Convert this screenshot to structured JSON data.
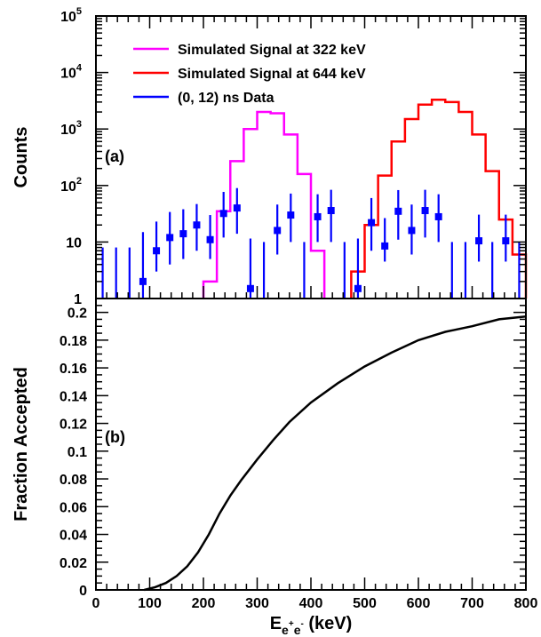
{
  "chart_data": [
    {
      "type": "line",
      "panel_label": "(a)",
      "ylabel": "Counts",
      "yscale": "log",
      "xlim": [
        0,
        800
      ],
      "ylim": [
        1,
        100000
      ],
      "y_tick_labels": [
        "1",
        "10",
        "10",
        "10",
        "10",
        "10"
      ],
      "y_tick_exponents": [
        "",
        "",
        "2",
        "3",
        "4",
        "5"
      ],
      "legend_position": "top-left",
      "series": [
        {
          "name": "Simulated Signal at 322 keV",
          "style": "histogram",
          "color": "#ff00ff",
          "bin_edges": [
            200,
            225,
            250,
            275,
            300,
            325,
            350,
            375,
            400,
            425
          ],
          "values": [
            2,
            35,
            270,
            1000,
            2000,
            1900,
            800,
            160,
            7
          ]
        },
        {
          "name": "Simulated Signal at 644 keV",
          "style": "histogram",
          "color": "#ff0000",
          "bin_edges": [
            475,
            500,
            525,
            550,
            575,
            600,
            625,
            650,
            675,
            700,
            725,
            750,
            775,
            800
          ],
          "values": [
            3,
            20,
            150,
            600,
            1500,
            2700,
            3300,
            3000,
            2000,
            800,
            180,
            25,
            6
          ]
        },
        {
          "name": "(0, 12) ns Data",
          "style": "points",
          "color": "#0000ff",
          "x": [
            12.5,
            37.5,
            62.5,
            87.5,
            112.5,
            137.5,
            162.5,
            187.5,
            212.5,
            237.5,
            262.5,
            287.5,
            312.5,
            337.5,
            362.5,
            387.5,
            412.5,
            437.5,
            462.5,
            487.5,
            512.5,
            537.5,
            562.5,
            587.5,
            612.5,
            637.5,
            662.5,
            687.5,
            712.5,
            737.5,
            762.5,
            787.5
          ],
          "y": [
            0,
            0,
            0,
            2,
            7,
            12,
            14,
            20,
            11,
            32,
            40,
            1.5,
            0,
            16,
            30,
            0,
            28,
            36,
            0,
            1.5,
            22,
            8.5,
            35,
            16,
            36,
            28,
            0,
            0,
            10.5,
            0,
            10.5,
            0
          ],
          "err_low": [
            0,
            0,
            0,
            1,
            4,
            8,
            9,
            13,
            6,
            20,
            26,
            0.5,
            0,
            10,
            20,
            0,
            18,
            26,
            0,
            0.5,
            15,
            4,
            24,
            10,
            24,
            18,
            0,
            0,
            6,
            0,
            6,
            0
          ],
          "err_high": [
            8,
            8,
            8,
            13,
            16,
            22,
            24,
            27,
            19,
            45,
            50,
            10,
            10,
            30,
            42,
            10,
            42,
            48,
            10,
            10,
            38,
            18,
            48,
            30,
            48,
            42,
            10,
            10,
            20,
            10,
            20,
            10
          ]
        }
      ]
    },
    {
      "type": "line",
      "panel_label": "(b)",
      "xlabel": "E",
      "xlabel_sub": "e",
      "xlabel_sup1": "+",
      "xlabel_sub2": "e",
      "xlabel_sup2": "-",
      "xlabel_unit": " (keV)",
      "ylabel": "Fraction Accepted",
      "xlim": [
        0,
        800
      ],
      "ylim": [
        0,
        0.21
      ],
      "x_ticks": [
        0,
        100,
        200,
        300,
        400,
        500,
        600,
        700,
        800
      ],
      "x_tick_labels": [
        "0",
        "100",
        "200",
        "300",
        "400",
        "500",
        "600",
        "700",
        "800"
      ],
      "y_ticks": [
        0,
        0.02,
        0.04,
        0.06,
        0.08,
        0.1,
        0.12,
        0.14,
        0.16,
        0.18,
        0.2
      ],
      "y_tick_labels": [
        "0",
        "0.02",
        "0.04",
        "0.06",
        "0.08",
        "0.1",
        "0.12",
        "0.14",
        "0.16",
        "0.18",
        "0.2"
      ],
      "series": [
        {
          "color": "#000000",
          "x": [
            90,
            110,
            130,
            150,
            170,
            190,
            210,
            230,
            250,
            270,
            300,
            330,
            360,
            400,
            450,
            500,
            550,
            600,
            650,
            700,
            750,
            800
          ],
          "y": [
            0,
            0.002,
            0.005,
            0.01,
            0.017,
            0.027,
            0.04,
            0.055,
            0.068,
            0.079,
            0.094,
            0.108,
            0.121,
            0.135,
            0.149,
            0.161,
            0.171,
            0.18,
            0.186,
            0.19,
            0.195,
            0.197
          ]
        }
      ]
    }
  ]
}
